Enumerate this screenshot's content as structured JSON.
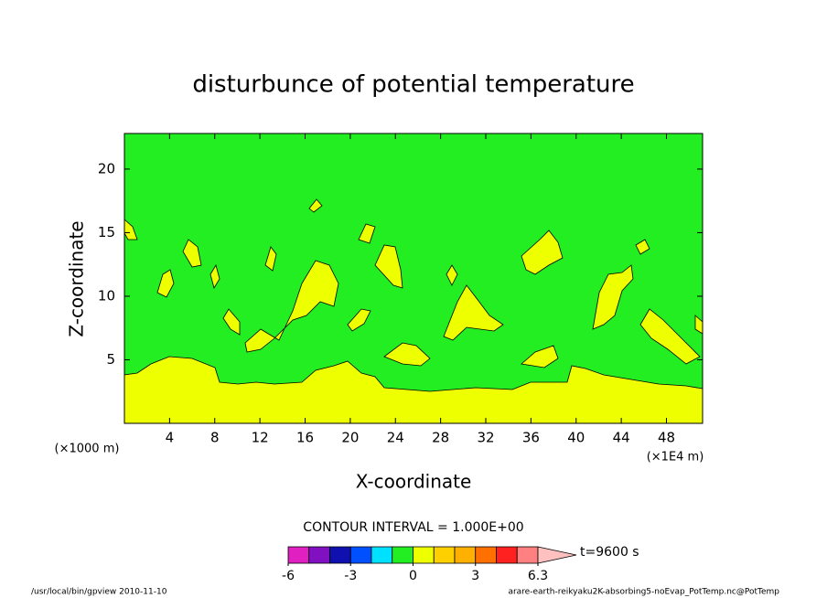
{
  "chart_data": {
    "type": "contour",
    "title": "disturbunce of potential temperature",
    "x_label": "X-coordinate",
    "y_label": "Z-coordinate",
    "x_unit": "(×1E4 m)",
    "y_unit": "(×1000 m)",
    "xlim": [
      0,
      51.2
    ],
    "xticks": [
      4,
      8,
      12,
      16,
      20,
      24,
      28,
      32,
      36,
      40,
      44,
      48
    ],
    "ylim": [
      0,
      22.8
    ],
    "yticks": [
      5,
      10,
      15,
      20
    ],
    "background_color": "#22ee22",
    "fill_color": "#eeff00",
    "contour_interval": "CONTOUR INTERVAL = 1.000E+00",
    "time_label": "t=9600 s",
    "colorbar": {
      "levels": [
        -6,
        -5,
        -4,
        -3,
        -2,
        -1,
        0,
        1,
        2,
        3,
        4,
        5,
        6.3
      ],
      "colors": [
        "#e020c0",
        "#8010c0",
        "#1010b0",
        "#0050ff",
        "#00e0ff",
        "#22ee22",
        "#eeff00",
        "#ffd000",
        "#ffb000",
        "#ff7000",
        "#ff2020",
        "#ff8080"
      ],
      "over_color": "#ffc0c0",
      "ticks": [
        -6,
        -3,
        0,
        3,
        6.3
      ]
    },
    "footer_left": "/usr/local/bin/gpview  2010-11-10",
    "footer_right": "arare-earth-reikyaku2K-absorbing5-noEvap_PotTemp.nc@PotTemp"
  }
}
